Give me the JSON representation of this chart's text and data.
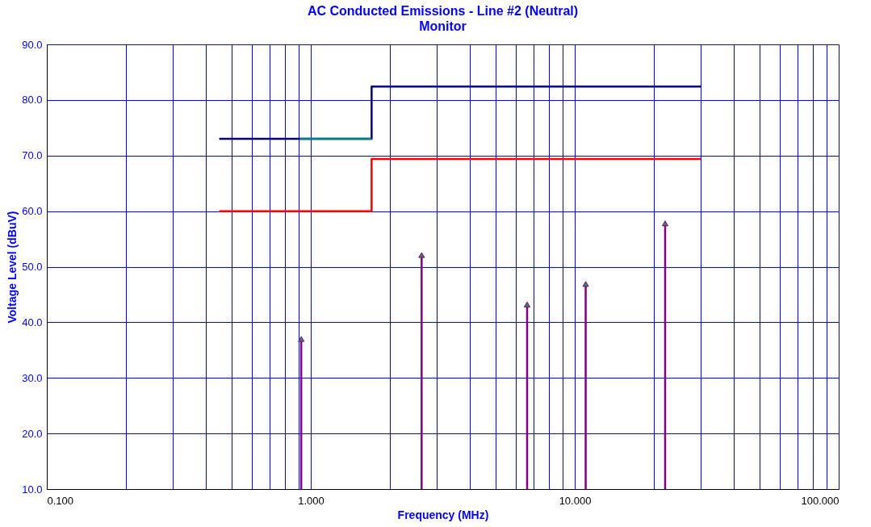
{
  "chart_data": {
    "type": "line",
    "title": "AC Conducted Emissions - Line #2 (Neutral)",
    "subtitle": "Monitor",
    "xlabel": "Frequency (MHz)",
    "ylabel": "Voltage Level (dBuV)",
    "log": "x",
    "grid": true,
    "xlim": [
      0.1,
      100
    ],
    "ylim": [
      10,
      90
    ],
    "xticks": [
      {
        "value": 0.1,
        "label": "0.100"
      },
      {
        "value": 0.2,
        "label": null
      },
      {
        "value": 0.3,
        "label": null
      },
      {
        "value": 0.4,
        "label": null
      },
      {
        "value": 0.5,
        "label": null
      },
      {
        "value": 0.6,
        "label": null
      },
      {
        "value": 0.7,
        "label": null
      },
      {
        "value": 0.8,
        "label": null
      },
      {
        "value": 0.9,
        "label": null
      },
      {
        "value": 1,
        "label": "1.000"
      },
      {
        "value": 2,
        "label": null
      },
      {
        "value": 3,
        "label": null
      },
      {
        "value": 4,
        "label": null
      },
      {
        "value": 5,
        "label": null
      },
      {
        "value": 6,
        "label": null
      },
      {
        "value": 7,
        "label": null
      },
      {
        "value": 8,
        "label": null
      },
      {
        "value": 9,
        "label": null
      },
      {
        "value": 10,
        "label": "10.000"
      },
      {
        "value": 20,
        "label": null
      },
      {
        "value": 30,
        "label": null
      },
      {
        "value": 40,
        "label": null
      },
      {
        "value": 50,
        "label": null
      },
      {
        "value": 60,
        "label": null
      },
      {
        "value": 70,
        "label": null
      },
      {
        "value": 80,
        "label": null
      },
      {
        "value": 90,
        "label": null
      },
      {
        "value": 100,
        "label": "100.000"
      }
    ],
    "yticks": [
      {
        "value": 10,
        "label": "10.0"
      },
      {
        "value": 20,
        "label": "20.0"
      },
      {
        "value": 30,
        "label": "30.0"
      },
      {
        "value": 40,
        "label": "40.0"
      },
      {
        "value": 50,
        "label": "50.0"
      },
      {
        "value": 60,
        "label": "60.0"
      },
      {
        "value": 70,
        "label": "70.0"
      },
      {
        "value": 80,
        "label": "80.0"
      },
      {
        "value": 90,
        "label": "90.0"
      }
    ],
    "series": [
      {
        "type": "step",
        "color": "#000080",
        "x": [
          0.45,
          1.7,
          30
        ],
        "values": [
          73,
          82.4,
          82.4
        ]
      },
      {
        "color": "#008080",
        "x": [
          0.91,
          1.7
        ],
        "values": [
          73,
          73
        ]
      },
      {
        "type": "step",
        "color": "#ff0000",
        "x": [
          0.45,
          1.7,
          30
        ],
        "values": [
          60,
          69.4,
          69.4
        ]
      },
      {
        "type": "lollipop",
        "color": "#800080",
        "marker": "triangle",
        "x": [
          0.92,
          2.63,
          6.6,
          11.0,
          22.0
        ],
        "values": [
          37.0,
          52.1,
          43.2,
          46.9,
          57.8
        ]
      }
    ]
  }
}
